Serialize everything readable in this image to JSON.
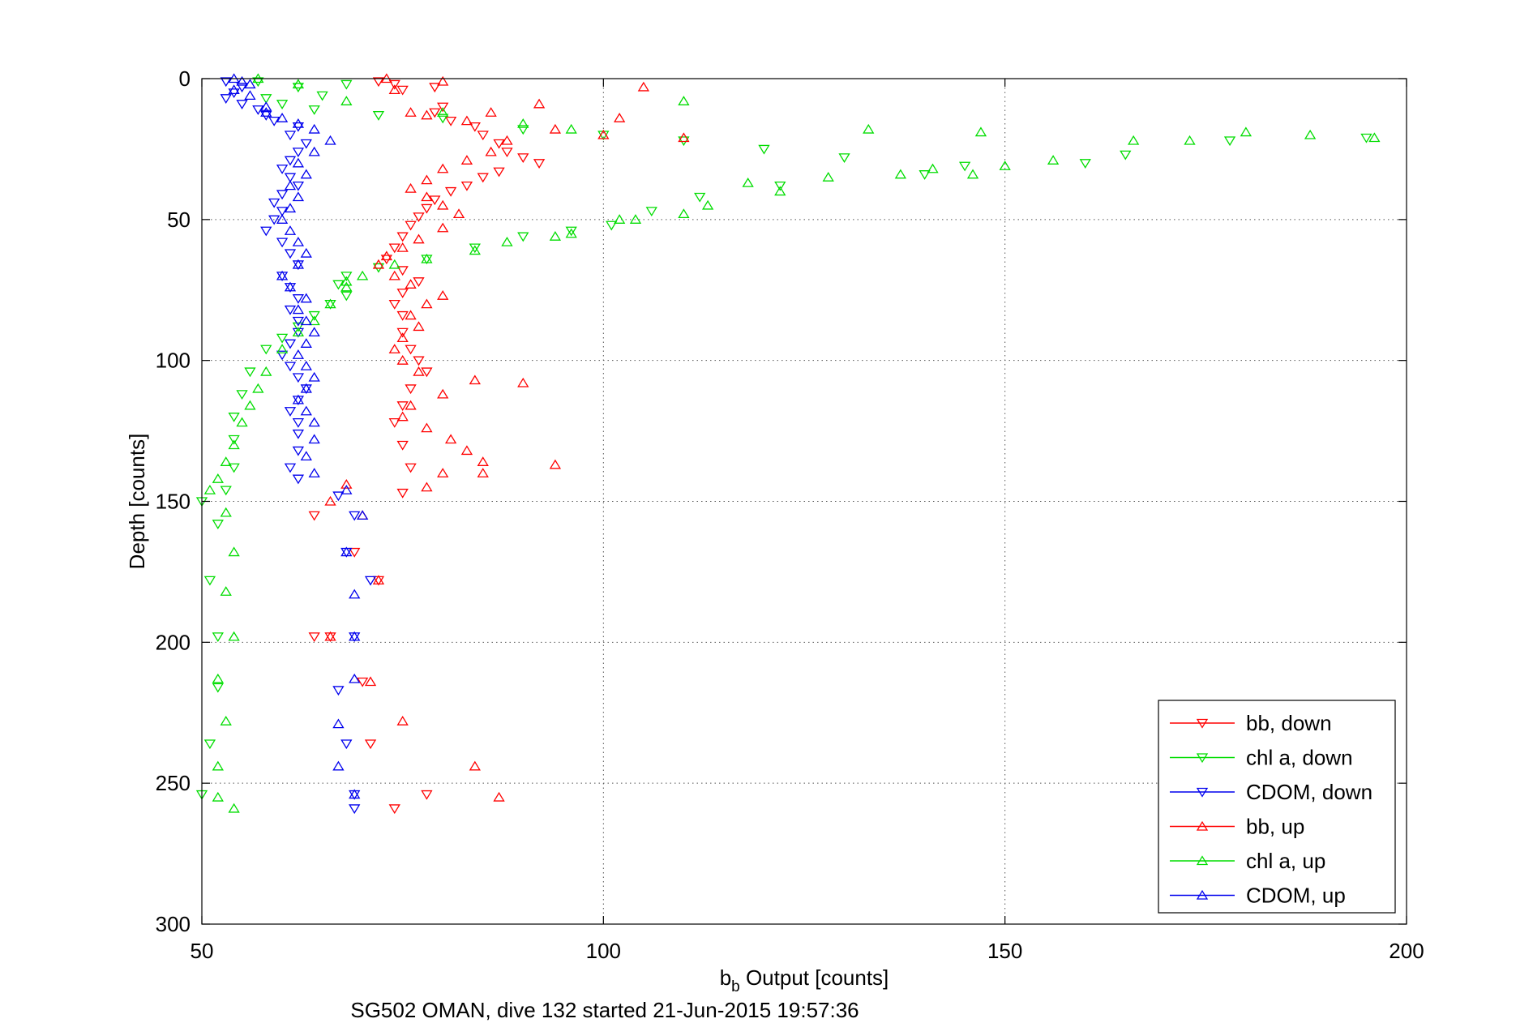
{
  "chart_data": {
    "type": "scatter",
    "xlabel_main": "b",
    "xlabel_sub": "b",
    "xlabel_rest": " Output [counts]",
    "ylabel": "Depth [counts]",
    "caption": "SG502 OMAN, dive 132 started 21-Jun-2015 19:57:36",
    "xlim": [
      50,
      200
    ],
    "ylim": [
      0,
      300
    ],
    "y_reversed": true,
    "grid": true,
    "grid_style": "dotted",
    "legend_position": "bottom-right",
    "x_ticks": [
      "50",
      "100",
      "150",
      "200"
    ],
    "y_ticks": [
      "0",
      "50",
      "100",
      "150",
      "200",
      "250",
      "300"
    ],
    "series": [
      {
        "name": "bb, down",
        "color": "#ff0000",
        "marker": "triangle-down",
        "points": [
          [
            72,
            1
          ],
          [
            74,
            2
          ],
          [
            79,
            3
          ],
          [
            75,
            4
          ],
          [
            80,
            10
          ],
          [
            79,
            12
          ],
          [
            81,
            15
          ],
          [
            84,
            17
          ],
          [
            85,
            20
          ],
          [
            87,
            23
          ],
          [
            88,
            26
          ],
          [
            90,
            28
          ],
          [
            92,
            30
          ],
          [
            87,
            33
          ],
          [
            85,
            35
          ],
          [
            83,
            38
          ],
          [
            81,
            40
          ],
          [
            79,
            43
          ],
          [
            78,
            46
          ],
          [
            77,
            49
          ],
          [
            76,
            52
          ],
          [
            75,
            56
          ],
          [
            74,
            60
          ],
          [
            73,
            64
          ],
          [
            75,
            68
          ],
          [
            77,
            72
          ],
          [
            75,
            76
          ],
          [
            74,
            80
          ],
          [
            75,
            84
          ],
          [
            75,
            90
          ],
          [
            76,
            96
          ],
          [
            77,
            100
          ],
          [
            78,
            104
          ],
          [
            76,
            110
          ],
          [
            75,
            116
          ],
          [
            74,
            122
          ],
          [
            75,
            130
          ],
          [
            76,
            138
          ],
          [
            75,
            147
          ],
          [
            64,
            155
          ],
          [
            69,
            168
          ],
          [
            72,
            178
          ],
          [
            64,
            198
          ],
          [
            66,
            198
          ],
          [
            70,
            214
          ],
          [
            71,
            236
          ],
          [
            78,
            254
          ],
          [
            74,
            259
          ]
        ]
      },
      {
        "name": "chl a, down",
        "color": "#00dd00",
        "marker": "triangle-down",
        "points": [
          [
            57,
            1
          ],
          [
            62,
            3
          ],
          [
            68,
            2
          ],
          [
            65,
            6
          ],
          [
            58,
            7
          ],
          [
            60,
            9
          ],
          [
            64,
            11
          ],
          [
            72,
            13
          ],
          [
            80,
            14
          ],
          [
            90,
            18
          ],
          [
            100,
            20
          ],
          [
            110,
            22
          ],
          [
            120,
            25
          ],
          [
            130,
            28
          ],
          [
            145,
            31
          ],
          [
            165,
            27
          ],
          [
            178,
            22
          ],
          [
            195,
            21
          ],
          [
            160,
            30
          ],
          [
            140,
            34
          ],
          [
            122,
            38
          ],
          [
            112,
            42
          ],
          [
            106,
            47
          ],
          [
            101,
            52
          ],
          [
            96,
            54
          ],
          [
            90,
            56
          ],
          [
            84,
            60
          ],
          [
            78,
            64
          ],
          [
            72,
            67
          ],
          [
            68,
            70
          ],
          [
            67,
            73
          ],
          [
            68,
            77
          ],
          [
            66,
            80
          ],
          [
            64,
            84
          ],
          [
            62,
            88
          ],
          [
            60,
            92
          ],
          [
            58,
            96
          ],
          [
            56,
            104
          ],
          [
            55,
            112
          ],
          [
            54,
            120
          ],
          [
            54,
            128
          ],
          [
            54,
            138
          ],
          [
            53,
            146
          ],
          [
            50,
            150
          ],
          [
            52,
            158
          ],
          [
            51,
            178
          ],
          [
            52,
            198
          ],
          [
            52,
            216
          ],
          [
            51,
            236
          ],
          [
            50,
            254
          ]
        ]
      },
      {
        "name": "CDOM, down",
        "color": "#0000ee",
        "marker": "triangle-down",
        "points": [
          [
            53,
            1
          ],
          [
            55,
            3
          ],
          [
            54,
            5
          ],
          [
            53,
            7
          ],
          [
            55,
            9
          ],
          [
            57,
            11
          ],
          [
            58,
            13
          ],
          [
            59,
            15
          ],
          [
            62,
            17
          ],
          [
            61,
            20
          ],
          [
            63,
            23
          ],
          [
            62,
            26
          ],
          [
            61,
            29
          ],
          [
            60,
            32
          ],
          [
            61,
            35
          ],
          [
            62,
            38
          ],
          [
            60,
            41
          ],
          [
            59,
            44
          ],
          [
            60,
            47
          ],
          [
            59,
            50
          ],
          [
            58,
            54
          ],
          [
            60,
            58
          ],
          [
            61,
            62
          ],
          [
            62,
            66
          ],
          [
            60,
            70
          ],
          [
            61,
            74
          ],
          [
            62,
            78
          ],
          [
            61,
            82
          ],
          [
            62,
            86
          ],
          [
            62,
            90
          ],
          [
            61,
            94
          ],
          [
            60,
            98
          ],
          [
            61,
            102
          ],
          [
            62,
            106
          ],
          [
            63,
            110
          ],
          [
            62,
            114
          ],
          [
            61,
            118
          ],
          [
            62,
            122
          ],
          [
            62,
            126
          ],
          [
            62,
            132
          ],
          [
            61,
            138
          ],
          [
            62,
            142
          ],
          [
            67,
            148
          ],
          [
            69,
            155
          ],
          [
            68,
            168
          ],
          [
            71,
            178
          ],
          [
            69,
            198
          ],
          [
            67,
            217
          ],
          [
            68,
            236
          ],
          [
            69,
            254
          ],
          [
            69,
            259
          ]
        ]
      },
      {
        "name": "bb, up",
        "color": "#ff0000",
        "marker": "triangle-up",
        "points": [
          [
            73,
            0
          ],
          [
            80,
            1
          ],
          [
            105,
            3
          ],
          [
            74,
            4
          ],
          [
            92,
            9
          ],
          [
            86,
            12
          ],
          [
            76,
            12
          ],
          [
            78,
            13
          ],
          [
            83,
            15
          ],
          [
            102,
            14
          ],
          [
            100,
            20
          ],
          [
            110,
            21
          ],
          [
            94,
            18
          ],
          [
            88,
            22
          ],
          [
            86,
            26
          ],
          [
            83,
            29
          ],
          [
            80,
            32
          ],
          [
            78,
            36
          ],
          [
            76,
            39
          ],
          [
            78,
            42
          ],
          [
            80,
            45
          ],
          [
            82,
            48
          ],
          [
            80,
            53
          ],
          [
            77,
            57
          ],
          [
            75,
            60
          ],
          [
            73,
            63
          ],
          [
            72,
            66
          ],
          [
            74,
            70
          ],
          [
            76,
            73
          ],
          [
            80,
            77
          ],
          [
            78,
            80
          ],
          [
            76,
            84
          ],
          [
            77,
            88
          ],
          [
            75,
            92
          ],
          [
            74,
            96
          ],
          [
            75,
            100
          ],
          [
            77,
            104
          ],
          [
            84,
            107
          ],
          [
            90,
            108
          ],
          [
            80,
            112
          ],
          [
            76,
            116
          ],
          [
            75,
            120
          ],
          [
            78,
            124
          ],
          [
            81,
            128
          ],
          [
            83,
            132
          ],
          [
            85,
            136
          ],
          [
            94,
            137
          ],
          [
            85,
            140
          ],
          [
            80,
            140
          ],
          [
            78,
            145
          ],
          [
            68,
            144
          ],
          [
            66,
            150
          ],
          [
            70,
            155
          ],
          [
            72,
            178
          ],
          [
            66,
            198
          ],
          [
            71,
            214
          ],
          [
            75,
            228
          ],
          [
            84,
            244
          ],
          [
            87,
            255
          ]
        ]
      },
      {
        "name": "chl a, up",
        "color": "#00dd00",
        "marker": "triangle-up",
        "points": [
          [
            57,
            0
          ],
          [
            62,
            2
          ],
          [
            68,
            8
          ],
          [
            80,
            12
          ],
          [
            90,
            16
          ],
          [
            96,
            18
          ],
          [
            110,
            8
          ],
          [
            133,
            18
          ],
          [
            147,
            19
          ],
          [
            173,
            22
          ],
          [
            180,
            19
          ],
          [
            188,
            20
          ],
          [
            196,
            21
          ],
          [
            166,
            22
          ],
          [
            156,
            29
          ],
          [
            150,
            31
          ],
          [
            146,
            34
          ],
          [
            141,
            32
          ],
          [
            137,
            34
          ],
          [
            128,
            35
          ],
          [
            122,
            40
          ],
          [
            118,
            37
          ],
          [
            113,
            45
          ],
          [
            110,
            48
          ],
          [
            104,
            50
          ],
          [
            102,
            50
          ],
          [
            96,
            55
          ],
          [
            94,
            56
          ],
          [
            88,
            58
          ],
          [
            84,
            61
          ],
          [
            78,
            64
          ],
          [
            74,
            66
          ],
          [
            70,
            70
          ],
          [
            68,
            72
          ],
          [
            68,
            74
          ],
          [
            66,
            80
          ],
          [
            64,
            86
          ],
          [
            62,
            90
          ],
          [
            60,
            96
          ],
          [
            58,
            104
          ],
          [
            57,
            110
          ],
          [
            56,
            116
          ],
          [
            55,
            122
          ],
          [
            54,
            130
          ],
          [
            53,
            136
          ],
          [
            52,
            142
          ],
          [
            51,
            146
          ],
          [
            53,
            154
          ],
          [
            54,
            168
          ],
          [
            53,
            182
          ],
          [
            54,
            198
          ],
          [
            52,
            213
          ],
          [
            53,
            228
          ],
          [
            52,
            244
          ],
          [
            52,
            255
          ],
          [
            54,
            259
          ]
        ]
      },
      {
        "name": "CDOM, up",
        "color": "#0000ee",
        "marker": "triangle-up",
        "points": [
          [
            54,
            0
          ],
          [
            55,
            1
          ],
          [
            56,
            2
          ],
          [
            54,
            4
          ],
          [
            56,
            6
          ],
          [
            58,
            10
          ],
          [
            58,
            12
          ],
          [
            60,
            14
          ],
          [
            62,
            16
          ],
          [
            64,
            18
          ],
          [
            66,
            22
          ],
          [
            64,
            26
          ],
          [
            62,
            30
          ],
          [
            63,
            34
          ],
          [
            61,
            38
          ],
          [
            62,
            42
          ],
          [
            61,
            46
          ],
          [
            60,
            50
          ],
          [
            61,
            54
          ],
          [
            62,
            58
          ],
          [
            63,
            62
          ],
          [
            62,
            66
          ],
          [
            60,
            70
          ],
          [
            61,
            74
          ],
          [
            63,
            78
          ],
          [
            62,
            82
          ],
          [
            63,
            86
          ],
          [
            64,
            90
          ],
          [
            63,
            94
          ],
          [
            62,
            98
          ],
          [
            63,
            102
          ],
          [
            64,
            106
          ],
          [
            63,
            110
          ],
          [
            62,
            114
          ],
          [
            63,
            118
          ],
          [
            64,
            122
          ],
          [
            64,
            128
          ],
          [
            63,
            134
          ],
          [
            64,
            140
          ],
          [
            68,
            146
          ],
          [
            70,
            155
          ],
          [
            68,
            168
          ],
          [
            69,
            183
          ],
          [
            69,
            198
          ],
          [
            69,
            213
          ],
          [
            67,
            229
          ],
          [
            67,
            244
          ],
          [
            69,
            254
          ]
        ]
      }
    ]
  }
}
